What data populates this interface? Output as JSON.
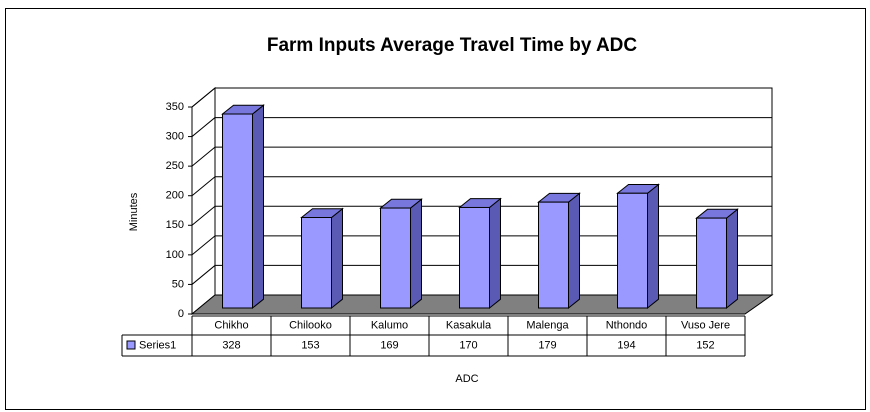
{
  "chart_data": {
    "type": "bar",
    "title": "Farm Inputs Average Travel Time by ADC",
    "y_label": "Minutes",
    "x_label": "ADC",
    "categories": [
      "Chikho",
      "Chilooko",
      "Kalumo",
      "Kasakula",
      "Malenga",
      "Nthondo",
      "Vuso Jere"
    ],
    "series": [
      {
        "name": "Series1",
        "color": "#9999ff",
        "values": [
          328,
          153,
          169,
          170,
          179,
          194,
          152
        ]
      }
    ],
    "ylim": [
      0,
      350
    ],
    "yticks": [
      0,
      50,
      100,
      150,
      200,
      250,
      300,
      350
    ],
    "grid": true
  }
}
